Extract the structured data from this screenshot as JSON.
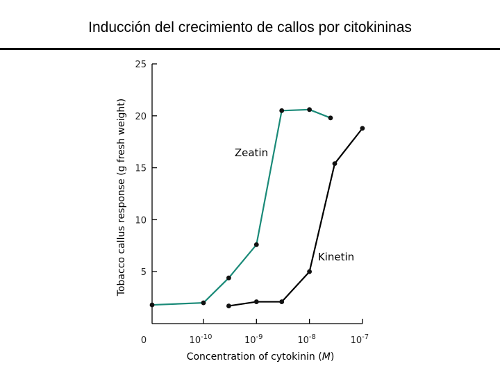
{
  "slide": {
    "title": "Inducción del crecimiento de callos por citokininas"
  },
  "chart_data": {
    "type": "line",
    "title": "",
    "xlabel": "Concentration of cytokinin",
    "xlabel_unit": "M",
    "ylabel": "Tobacco callus response (g fresh weight)",
    "x_scale": "log10 with zero at origin",
    "x_ticks": [
      {
        "value": 0,
        "base": "0",
        "exp": ""
      },
      {
        "value": 1e-10,
        "base": "10",
        "exp": "-10"
      },
      {
        "value": 1e-09,
        "base": "10",
        "exp": "-9"
      },
      {
        "value": 1e-08,
        "base": "10",
        "exp": "-8"
      },
      {
        "value": 1e-07,
        "base": "10",
        "exp": "-7"
      }
    ],
    "ylim": [
      0,
      25
    ],
    "y_ticks": [
      {
        "value": 5,
        "label": "5"
      },
      {
        "value": 10,
        "label": "10"
      },
      {
        "value": 15,
        "label": "15"
      },
      {
        "value": 20,
        "label": "20"
      },
      {
        "value": 25,
        "label": "25"
      }
    ],
    "grid": false,
    "legend": "labels placed next to lines",
    "series": [
      {
        "name": "Zeatin",
        "color": "#1a8a78",
        "points": [
          {
            "x": 0,
            "y": 1.8
          },
          {
            "x": 1e-10,
            "y": 2.0
          },
          {
            "x": 3e-10,
            "y": 4.4
          },
          {
            "x": 1e-09,
            "y": 7.6
          },
          {
            "x": 3e-09,
            "y": 20.5
          },
          {
            "x": 1e-08,
            "y": 20.6
          },
          {
            "x": 2.5e-08,
            "y": 19.8
          }
        ]
      },
      {
        "name": "Kinetin",
        "color": "#000000",
        "points": [
          {
            "x": 3e-10,
            "y": 1.7
          },
          {
            "x": 1e-09,
            "y": 2.1
          },
          {
            "x": 3e-09,
            "y": 2.1
          },
          {
            "x": 1e-08,
            "y": 5.0
          },
          {
            "x": 3e-08,
            "y": 15.4
          },
          {
            "x": 1e-07,
            "y": 18.8
          }
        ]
      }
    ]
  }
}
